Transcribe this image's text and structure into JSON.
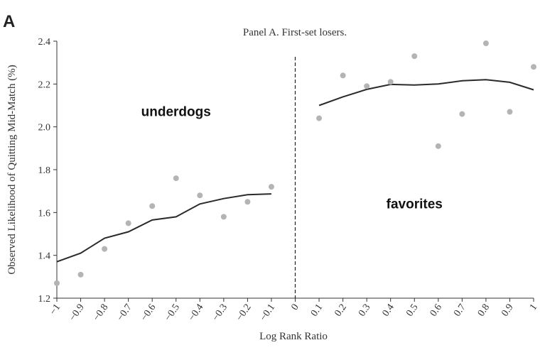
{
  "panel_letter": "A",
  "chart_data": {
    "type": "scatter",
    "title": "Panel A. First-set losers.",
    "xlabel": "Log Rank Ratio",
    "ylabel": "Observed Likelihood of Quitting Mid-Match (%)",
    "xlim": [
      -1,
      1
    ],
    "ylim": [
      1.2,
      2.4
    ],
    "xticks": [
      -1,
      -0.9,
      -0.8,
      -0.7,
      -0.6,
      -0.5,
      -0.4,
      -0.3,
      -0.2,
      -0.1,
      0,
      0.1,
      0.2,
      0.3,
      0.4,
      0.5,
      0.6,
      0.7,
      0.8,
      0.9,
      1
    ],
    "xtick_labels": [
      "−1",
      "−0.9",
      "−0.8",
      "−0.7",
      "−0.6",
      "−0.5",
      "−0.4",
      "−0.3",
      "−0.2",
      "−0.1",
      "0",
      "0.1",
      "0.2",
      "0.3",
      "0.4",
      "0.5",
      "0.6",
      "0.7",
      "0.8",
      "0.9",
      "1"
    ],
    "yticks": [
      1.2,
      1.4,
      1.6,
      1.8,
      2.0,
      2.2,
      2.4
    ],
    "ytick_labels": [
      "1.2",
      "1.4",
      "1.6",
      "1.8",
      "2.0",
      "2.2",
      "2.4"
    ],
    "grid": false,
    "divider_x": 0,
    "annotations": [
      {
        "text": "underdogs",
        "x": -0.5,
        "y": 2.05
      },
      {
        "text": "favorites",
        "x": 0.5,
        "y": 1.62
      }
    ],
    "scatter_points": [
      {
        "x": -1.0,
        "y": 1.27
      },
      {
        "x": -0.9,
        "y": 1.31
      },
      {
        "x": -0.8,
        "y": 1.43
      },
      {
        "x": -0.7,
        "y": 1.55
      },
      {
        "x": -0.6,
        "y": 1.63
      },
      {
        "x": -0.5,
        "y": 1.76
      },
      {
        "x": -0.4,
        "y": 1.68
      },
      {
        "x": -0.3,
        "y": 1.58
      },
      {
        "x": -0.2,
        "y": 1.65
      },
      {
        "x": -0.1,
        "y": 1.72
      },
      {
        "x": 0.1,
        "y": 2.04
      },
      {
        "x": 0.2,
        "y": 2.24
      },
      {
        "x": 0.3,
        "y": 2.19
      },
      {
        "x": 0.4,
        "y": 2.21
      },
      {
        "x": 0.5,
        "y": 2.33
      },
      {
        "x": 0.6,
        "y": 1.91
      },
      {
        "x": 0.7,
        "y": 2.06
      },
      {
        "x": 0.8,
        "y": 2.39
      },
      {
        "x": 0.9,
        "y": 2.07
      },
      {
        "x": 1.0,
        "y": 2.28
      }
    ],
    "fit_lines": [
      {
        "points": [
          [
            -1.0,
            1.37
          ],
          [
            -0.9,
            1.41
          ],
          [
            -0.8,
            1.48
          ],
          [
            -0.7,
            1.51
          ],
          [
            -0.6,
            1.565
          ],
          [
            -0.5,
            1.58
          ],
          [
            -0.4,
            1.64
          ],
          [
            -0.3,
            1.665
          ],
          [
            -0.2,
            1.683
          ],
          [
            -0.1,
            1.687
          ]
        ]
      },
      {
        "points": [
          [
            0.1,
            2.1
          ],
          [
            0.2,
            2.14
          ],
          [
            0.3,
            2.175
          ],
          [
            0.4,
            2.198
          ],
          [
            0.5,
            2.195
          ],
          [
            0.6,
            2.2
          ],
          [
            0.7,
            2.215
          ],
          [
            0.8,
            2.22
          ],
          [
            0.9,
            2.208
          ],
          [
            1.0,
            2.173
          ]
        ]
      }
    ]
  }
}
